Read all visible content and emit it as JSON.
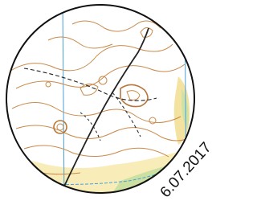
{
  "date": "6.07.2017"
}
